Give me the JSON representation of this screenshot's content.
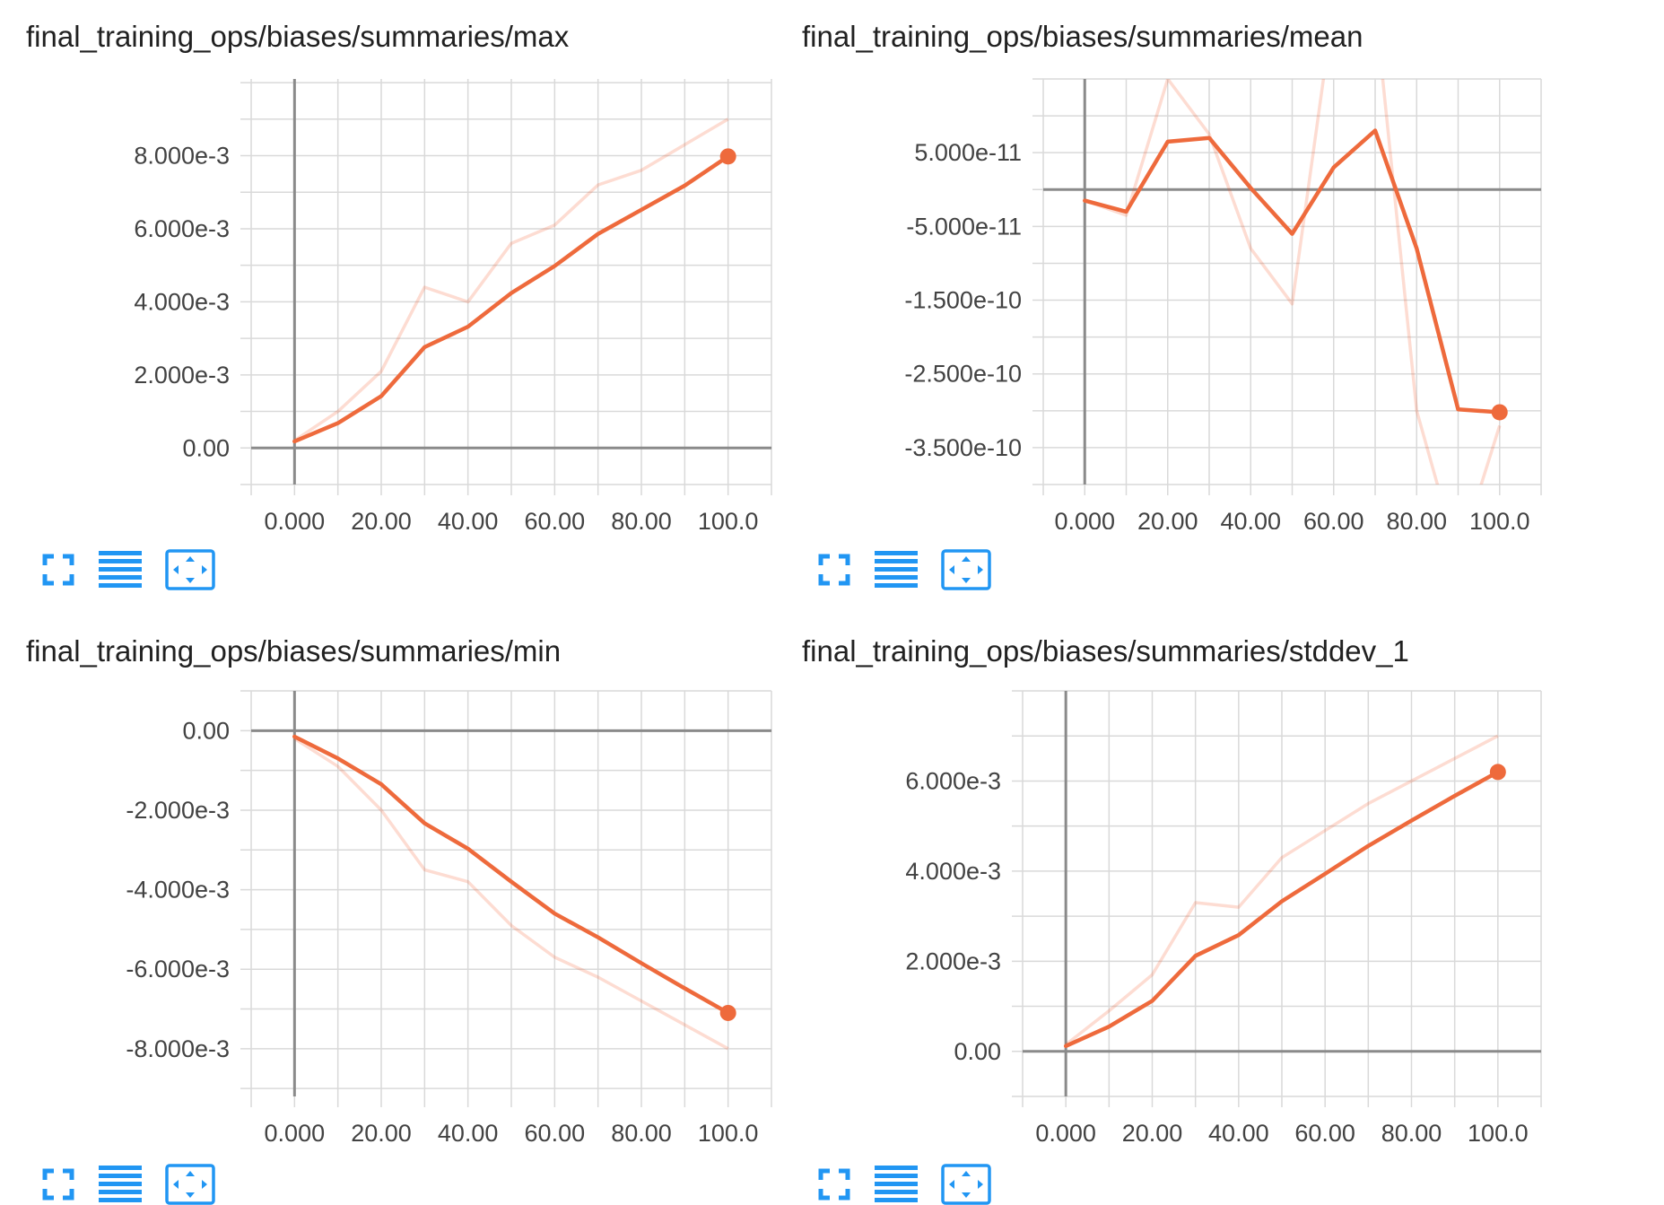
{
  "accent_color": "#ee6a3c",
  "raw_color": "#f4511e",
  "icon_color": "#2196f3",
  "toolbar": {
    "icons": [
      "fullscreen-icon",
      "data-table-icon",
      "fit-domain-icon"
    ]
  },
  "chart_data": [
    {
      "type": "line",
      "title": "final_training_ops/biases/summaries/max",
      "x_ticks": [
        "0.000",
        "20.00",
        "40.00",
        "60.00",
        "80.00",
        "100.0"
      ],
      "x_tick_values": [
        0,
        20,
        40,
        60,
        80,
        100
      ],
      "y_ticks": [
        "0.00",
        "2.000e-3",
        "4.000e-3",
        "6.000e-3",
        "8.000e-3"
      ],
      "y_tick_values": [
        0,
        0.002,
        0.004,
        0.006,
        0.008
      ],
      "xlim": [
        -10,
        110
      ],
      "ylim": [
        -0.001,
        0.0101
      ],
      "grid": true,
      "x": [
        0,
        10,
        20,
        30,
        40,
        50,
        60,
        70,
        80,
        90,
        100
      ],
      "series": [
        {
          "role": "raw",
          "values": [
            0.0002,
            0.001,
            0.0021,
            0.0044,
            0.004,
            0.0056,
            0.0061,
            0.0072,
            0.0076,
            0.0083,
            0.009
          ]
        },
        {
          "role": "smoothed",
          "values": [
            0.00018,
            0.00068,
            0.00142,
            0.00276,
            0.00332,
            0.00424,
            0.00498,
            0.00586,
            0.00652,
            0.00718,
            0.00798
          ]
        }
      ]
    },
    {
      "type": "line",
      "title": "final_training_ops/biases/summaries/mean",
      "x_ticks": [
        "0.000",
        "20.00",
        "40.00",
        "60.00",
        "80.00",
        "100.0"
      ],
      "x_tick_values": [
        0,
        20,
        40,
        60,
        80,
        100
      ],
      "y_ticks": [
        "5.000e-11",
        "-5.000e-11",
        "-1.500e-10",
        "-2.500e-10",
        "-3.500e-10"
      ],
      "y_tick_values": [
        5e-11,
        -5e-11,
        -1.5e-10,
        -2.5e-10,
        -3.5e-10
      ],
      "xlim": [
        -10,
        110
      ],
      "ylim": [
        -4e-10,
        1.5e-10
      ],
      "grid": true,
      "x": [
        0,
        10,
        20,
        30,
        40,
        50,
        60,
        70,
        80,
        90,
        100
      ],
      "series": [
        {
          "role": "raw",
          "values": [
            -1.5e-11,
            -3.5e-11,
            1.5e-10,
            7.5e-11,
            -8e-11,
            -1.55e-10,
            2.5e-10,
            2.5e-10,
            -3e-10,
            -5e-10,
            -3.2e-10
          ]
        },
        {
          "role": "smoothed",
          "values": [
            -1.5e-11,
            -3e-11,
            6.5e-11,
            7e-11,
            2e-12,
            -6e-11,
            3e-11,
            8e-11,
            -8e-11,
            -2.98e-10,
            -3.02e-10
          ]
        }
      ]
    },
    {
      "type": "line",
      "title": "final_training_ops/biases/summaries/min",
      "x_ticks": [
        "0.000",
        "20.00",
        "40.00",
        "60.00",
        "80.00",
        "100.0"
      ],
      "x_tick_values": [
        0,
        20,
        40,
        60,
        80,
        100
      ],
      "y_ticks": [
        "0.00",
        "-2.000e-3",
        "-4.000e-3",
        "-6.000e-3",
        "-8.000e-3"
      ],
      "y_tick_values": [
        0,
        -0.002,
        -0.004,
        -0.006,
        -0.008
      ],
      "xlim": [
        -10,
        110
      ],
      "ylim": [
        -0.0092,
        0.001
      ],
      "grid": true,
      "x": [
        0,
        10,
        20,
        30,
        40,
        50,
        60,
        70,
        80,
        90,
        100
      ],
      "series": [
        {
          "role": "raw",
          "values": [
            -0.0002,
            -0.0009,
            -0.002,
            -0.0035,
            -0.0038,
            -0.0049,
            -0.0057,
            -0.0062,
            -0.0068,
            -0.0074,
            -0.008
          ]
        },
        {
          "role": "smoothed",
          "values": [
            -0.00015,
            -0.0007,
            -0.00135,
            -0.00233,
            -0.00297,
            -0.0038,
            -0.0046,
            -0.0052,
            -0.00585,
            -0.00648,
            -0.0071
          ]
        }
      ]
    },
    {
      "type": "line",
      "title": "final_training_ops/biases/summaries/stddev_1",
      "x_ticks": [
        "0.000",
        "20.00",
        "40.00",
        "60.00",
        "80.00",
        "100.0"
      ],
      "x_tick_values": [
        0,
        20,
        40,
        60,
        80,
        100
      ],
      "y_ticks": [
        "0.00",
        "2.000e-3",
        "4.000e-3",
        "6.000e-3"
      ],
      "y_tick_values": [
        0,
        0.002,
        0.004,
        0.006
      ],
      "xlim": [
        -10,
        110
      ],
      "ylim": [
        -0.001,
        0.008
      ],
      "grid": true,
      "x": [
        0,
        10,
        20,
        30,
        40,
        50,
        60,
        70,
        80,
        90,
        100
      ],
      "series": [
        {
          "role": "raw",
          "values": [
            0.00015,
            0.0009,
            0.0017,
            0.0033,
            0.0032,
            0.0043,
            0.0049,
            0.0055,
            0.006,
            0.0065,
            0.007
          ]
        },
        {
          "role": "smoothed",
          "values": [
            0.00012,
            0.00055,
            0.00112,
            0.00212,
            0.00258,
            0.00333,
            0.00394,
            0.00456,
            0.00512,
            0.00567,
            0.0062
          ]
        }
      ]
    }
  ]
}
